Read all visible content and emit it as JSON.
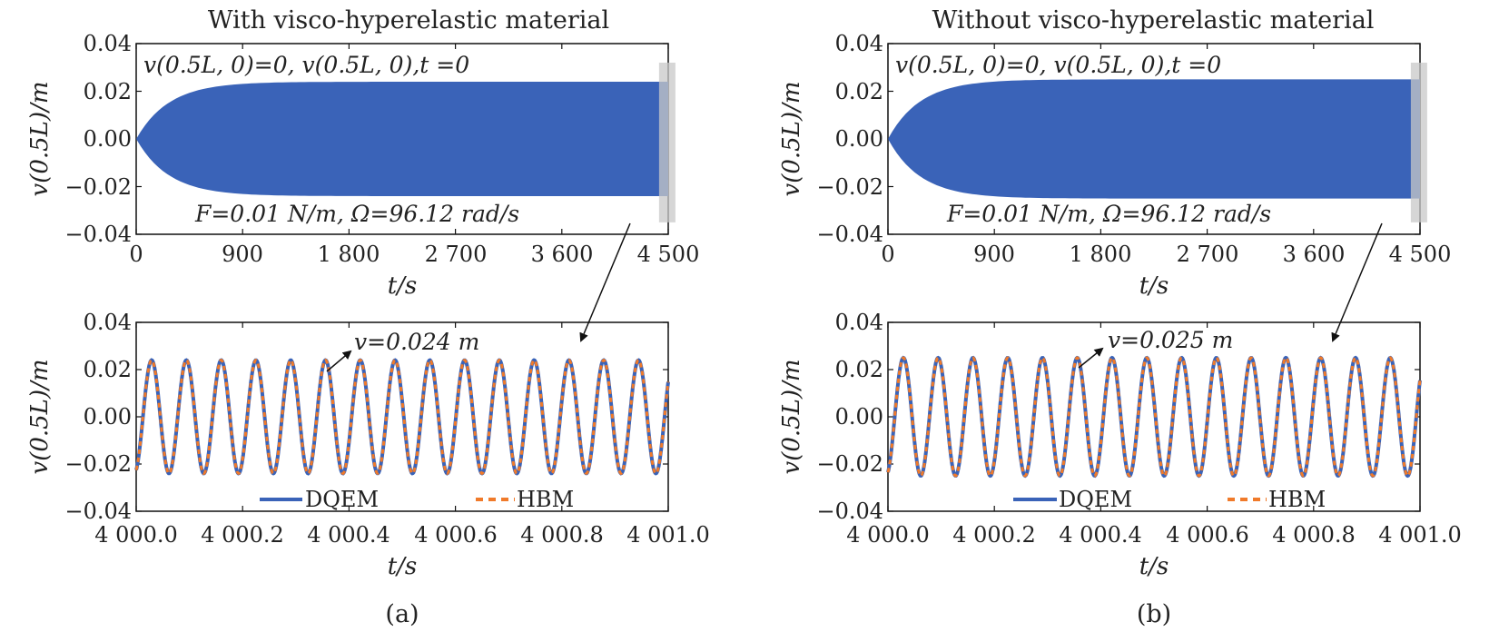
{
  "colors": {
    "dqem": "#3a63b8",
    "hbm": "#f07a2a",
    "fill": "#3a63b8",
    "window": "#c8c8c8"
  },
  "panels": [
    {
      "title": "With visco-hyperelastic material",
      "caption": "(a)",
      "top": {
        "ylabel": "v(0.5L)/m",
        "xlabel": "t/s",
        "xticks": [
          "0",
          "900",
          "1 800",
          "2 700",
          "3 600",
          "4 500"
        ],
        "yticks": [
          "0.04",
          "0.02",
          "0.00",
          "−0.02",
          "−0.04"
        ],
        "initial_condition": "v(0.5L, 0)=0, v(0.5L, 0),t =0",
        "force_label": "F=0.01 N/m, Ω=96.12 rad/s"
      },
      "bottom": {
        "ylabel": "v(0.5L)/m",
        "xlabel": "t/s",
        "xticks": [
          "4 000.0",
          "4 000.2",
          "4 000.4",
          "4 000.6",
          "4 000.8",
          "4 001.0"
        ],
        "yticks": [
          "0.04",
          "0.02",
          "0.00",
          "−0.02",
          "−0.04"
        ],
        "amplitude_label": "v=0.024 m",
        "legend": [
          "DQEM",
          "HBM"
        ]
      }
    },
    {
      "title": "Without visco-hyperelastic material",
      "caption": "(b)",
      "top": {
        "ylabel": "v(0.5L)/m",
        "xlabel": "t/s",
        "xticks": [
          "0",
          "900",
          "1 800",
          "2 700",
          "3 600",
          "4 500"
        ],
        "yticks": [
          "0.04",
          "0.02",
          "0.00",
          "−0.02",
          "−0.04"
        ],
        "initial_condition": "v(0.5L, 0)=0, v(0.5L, 0),t =0",
        "force_label": "F=0.01 N/m, Ω=96.12 rad/s"
      },
      "bottom": {
        "ylabel": "v(0.5L)/m",
        "xlabel": "t/s",
        "xticks": [
          "4 000.0",
          "4 000.2",
          "4 000.4",
          "4 000.6",
          "4 000.8",
          "4 001.0"
        ],
        "yticks": [
          "0.04",
          "0.02",
          "0.00",
          "−0.02",
          "−0.04"
        ],
        "amplitude_label": "v=0.025 m",
        "legend": [
          "DQEM",
          "HBM"
        ]
      }
    }
  ],
  "chart_data": [
    {
      "type": "area",
      "panel": "a-top",
      "xlim": [
        0,
        4500
      ],
      "ylim": [
        -0.04,
        0.04
      ],
      "steady_amplitude": 0.024,
      "rise_end_t": 1100,
      "window": [
        4000,
        4001
      ]
    },
    {
      "type": "line",
      "panel": "a-bottom",
      "xlim": [
        4000.0,
        4001.0
      ],
      "ylim": [
        -0.04,
        0.04
      ],
      "series": [
        {
          "name": "DQEM",
          "amplitude": 0.024,
          "cycles": 15.3
        },
        {
          "name": "HBM",
          "amplitude": 0.024,
          "cycles": 15.3
        }
      ]
    },
    {
      "type": "area",
      "panel": "b-top",
      "xlim": [
        0,
        4500
      ],
      "ylim": [
        -0.04,
        0.04
      ],
      "steady_amplitude": 0.025,
      "rise_end_t": 1100,
      "window": [
        4000,
        4001
      ]
    },
    {
      "type": "line",
      "panel": "b-bottom",
      "xlim": [
        4000.0,
        4001.0
      ],
      "ylim": [
        -0.04,
        0.04
      ],
      "series": [
        {
          "name": "DQEM",
          "amplitude": 0.025,
          "cycles": 15.3
        },
        {
          "name": "HBM",
          "amplitude": 0.025,
          "cycles": 15.3
        }
      ]
    }
  ]
}
